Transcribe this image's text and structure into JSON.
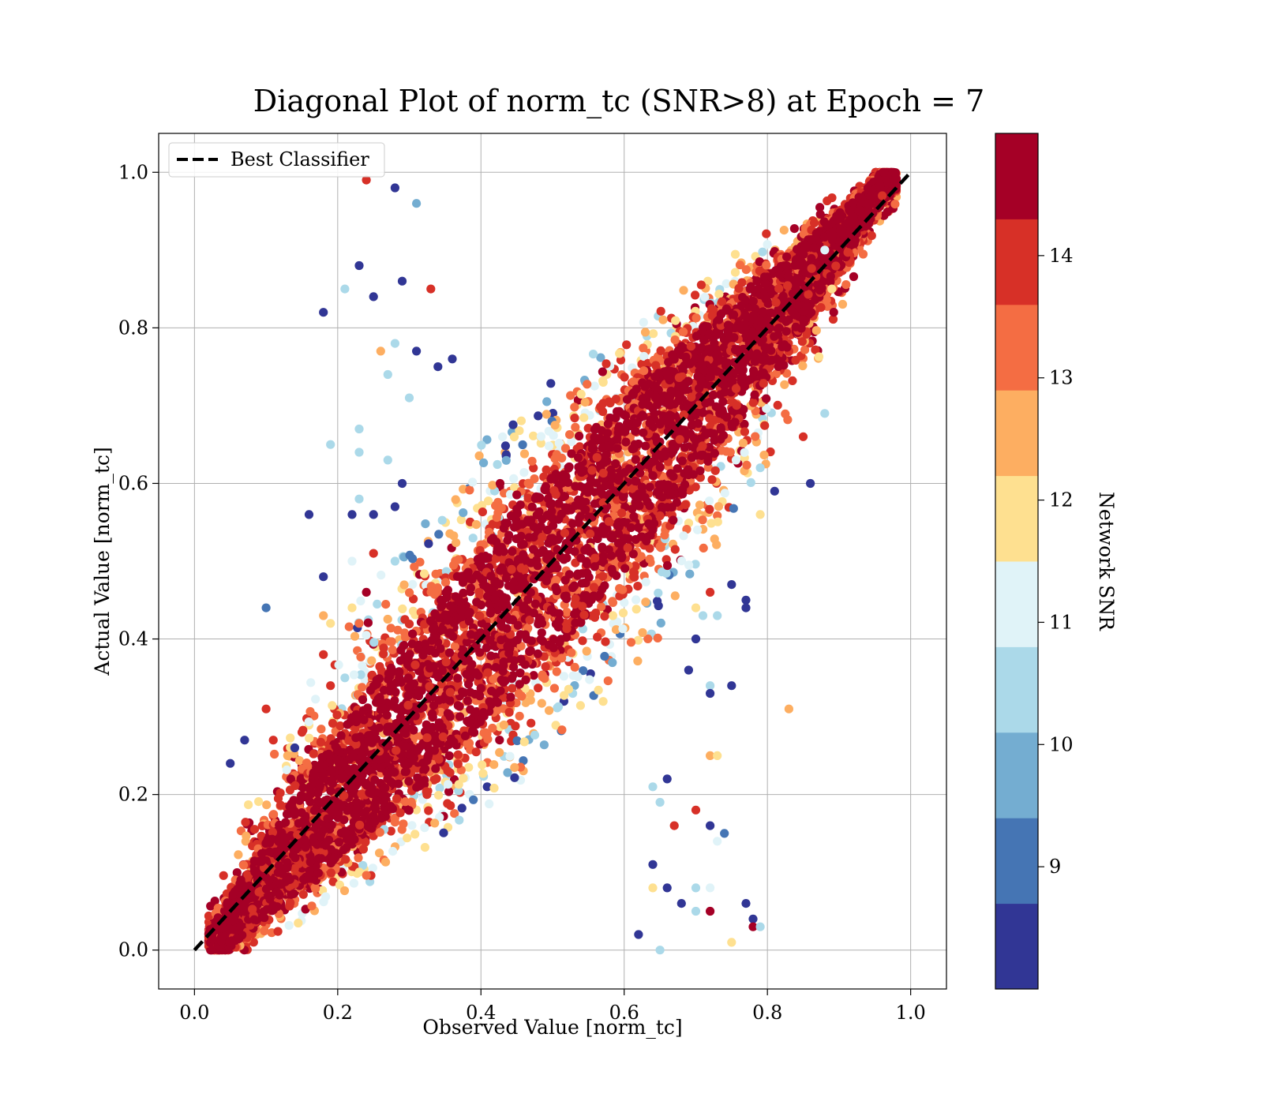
{
  "chart_data": {
    "type": "scatter",
    "title": "Diagonal Plot of norm_tc (SNR>8) at Epoch = 7",
    "xlabel": "Observed Value [norm_tc]",
    "ylabel": "Actual Value [norm_tc]",
    "xlim": [
      -0.05,
      1.05
    ],
    "ylim": [
      -0.05,
      1.05
    ],
    "xticks": [
      0.0,
      0.2,
      0.4,
      0.6,
      0.8,
      1.0
    ],
    "yticks": [
      0.0,
      0.2,
      0.4,
      0.6,
      0.8,
      1.0
    ],
    "xtick_labels": [
      "0.0",
      "0.2",
      "0.4",
      "0.6",
      "0.8",
      "1.0"
    ],
    "ytick_labels": [
      "0.0",
      "0.2",
      "0.4",
      "0.6",
      "0.8",
      "1.0"
    ],
    "grid": true,
    "legend": {
      "placement": "top-left",
      "entries": [
        {
          "label": "Best Classifier",
          "style": "black dashed line"
        }
      ]
    },
    "reference_line": {
      "label": "Best Classifier",
      "x": [
        0.0,
        1.0
      ],
      "y": [
        0.0,
        1.0
      ],
      "color": "#000000",
      "dash": true
    },
    "colorbar": {
      "label": "Network SNR",
      "min": 8,
      "max": 15,
      "ticks": [
        9,
        10,
        11,
        12,
        13,
        14
      ],
      "tick_labels": [
        "9",
        "10",
        "11",
        "12",
        "13",
        "14"
      ],
      "levels": [
        {
          "from": 8.0,
          "to": 8.7,
          "color": "#313695"
        },
        {
          "from": 8.7,
          "to": 9.4,
          "color": "#4575b4"
        },
        {
          "from": 9.4,
          "to": 10.1,
          "color": "#74add1"
        },
        {
          "from": 10.1,
          "to": 10.8,
          "color": "#abd9e9"
        },
        {
          "from": 10.8,
          "to": 11.5,
          "color": "#e0f3f8"
        },
        {
          "from": 11.5,
          "to": 12.2,
          "color": "#fee090"
        },
        {
          "from": 12.2,
          "to": 12.9,
          "color": "#fdae61"
        },
        {
          "from": 12.9,
          "to": 13.6,
          "color": "#f46d43"
        },
        {
          "from": 13.6,
          "to": 14.3,
          "color": "#d73027"
        },
        {
          "from": 14.3,
          "to": 15.0,
          "color": "#a50026"
        }
      ]
    },
    "series": [
      {
        "description_kind": "scatter",
        "points": [
          [
            0.24,
            0.99,
            13.9
          ],
          [
            0.28,
            0.98,
            8.3
          ],
          [
            0.31,
            0.96,
            10.0
          ],
          [
            0.23,
            0.88,
            8.2
          ],
          [
            0.25,
            0.84,
            8.5
          ],
          [
            0.18,
            0.82,
            8.2
          ],
          [
            0.29,
            0.86,
            8.3
          ],
          [
            0.28,
            0.78,
            10.2
          ],
          [
            0.21,
            0.85,
            10.5
          ],
          [
            0.27,
            0.74,
            10.5
          ],
          [
            0.26,
            0.77,
            12.6
          ],
          [
            0.31,
            0.77,
            8.3
          ],
          [
            0.33,
            0.85,
            13.9
          ],
          [
            0.34,
            0.75,
            8.3
          ],
          [
            0.36,
            0.76,
            8.3
          ],
          [
            0.19,
            0.65,
            10.2
          ],
          [
            0.23,
            0.67,
            10.2
          ],
          [
            0.23,
            0.64,
            10.2
          ],
          [
            0.27,
            0.63,
            10.2
          ],
          [
            0.29,
            0.6,
            8.3
          ],
          [
            0.3,
            0.71,
            10.5
          ],
          [
            0.16,
            0.56,
            8.3
          ],
          [
            0.22,
            0.56,
            8.3
          ],
          [
            0.25,
            0.56,
            8.3
          ],
          [
            0.23,
            0.58,
            10.5
          ],
          [
            0.28,
            0.57,
            8.3
          ],
          [
            0.18,
            0.48,
            8.3
          ],
          [
            0.22,
            0.5,
            10.8
          ],
          [
            0.25,
            0.51,
            13.9
          ],
          [
            0.28,
            0.5,
            10.2
          ],
          [
            0.1,
            0.44,
            9.0
          ],
          [
            0.18,
            0.43,
            12.6
          ],
          [
            0.19,
            0.42,
            12.0
          ],
          [
            0.22,
            0.44,
            12.0
          ],
          [
            0.24,
            0.46,
            14.5
          ],
          [
            0.23,
            0.42,
            13.2
          ],
          [
            0.1,
            0.31,
            13.9
          ],
          [
            0.07,
            0.27,
            8.3
          ],
          [
            0.05,
            0.24,
            8.3
          ],
          [
            0.18,
            0.38,
            13.9
          ],
          [
            0.19,
            0.34,
            13.9
          ],
          [
            0.21,
            0.35,
            10.5
          ],
          [
            0.15,
            0.28,
            13.9
          ],
          [
            0.11,
            0.27,
            13.9
          ],
          [
            0.13,
            0.25,
            12.6
          ],
          [
            0.14,
            0.26,
            8.3
          ],
          [
            0.77,
            0.45,
            8.3
          ],
          [
            0.77,
            0.44,
            8.3
          ],
          [
            0.75,
            0.47,
            8.3
          ],
          [
            0.72,
            0.46,
            13.9
          ],
          [
            0.7,
            0.44,
            12.0
          ],
          [
            0.71,
            0.43,
            10.5
          ],
          [
            0.73,
            0.43,
            10.5
          ],
          [
            0.7,
            0.4,
            8.3
          ],
          [
            0.69,
            0.36,
            8.3
          ],
          [
            0.72,
            0.34,
            10.2
          ],
          [
            0.72,
            0.33,
            8.3
          ],
          [
            0.75,
            0.34,
            8.3
          ],
          [
            0.83,
            0.31,
            12.6
          ],
          [
            0.72,
            0.25,
            12.6
          ],
          [
            0.73,
            0.25,
            12.0
          ],
          [
            0.66,
            0.22,
            8.3
          ],
          [
            0.64,
            0.21,
            10.2
          ],
          [
            0.65,
            0.19,
            10.2
          ],
          [
            0.7,
            0.18,
            13.9
          ],
          [
            0.72,
            0.16,
            8.3
          ],
          [
            0.73,
            0.14,
            10.8
          ],
          [
            0.74,
            0.15,
            9.0
          ],
          [
            0.67,
            0.16,
            13.9
          ],
          [
            0.64,
            0.11,
            8.3
          ],
          [
            0.66,
            0.08,
            8.3
          ],
          [
            0.7,
            0.08,
            10.5
          ],
          [
            0.72,
            0.08,
            10.8
          ],
          [
            0.64,
            0.08,
            12.0
          ],
          [
            0.68,
            0.06,
            8.3
          ],
          [
            0.7,
            0.05,
            10.2
          ],
          [
            0.72,
            0.05,
            14.5
          ],
          [
            0.75,
            0.01,
            12.0
          ],
          [
            0.77,
            0.06,
            8.3
          ],
          [
            0.78,
            0.04,
            8.3
          ],
          [
            0.78,
            0.03,
            14.5
          ],
          [
            0.79,
            0.03,
            10.2
          ],
          [
            0.62,
            0.02,
            8.3
          ],
          [
            0.65,
            0.0,
            10.2
          ],
          [
            0.86,
            0.6,
            8.3
          ],
          [
            0.85,
            0.66,
            13.9
          ],
          [
            0.81,
            0.59,
            8.3
          ],
          [
            0.79,
            0.62,
            10.5
          ],
          [
            0.79,
            0.56,
            12.0
          ],
          [
            0.88,
            0.69,
            10.5
          ],
          [
            0.88,
            0.9,
            10.8
          ],
          [
            0.89,
            0.85,
            12.0
          ]
        ]
      }
    ]
  }
}
